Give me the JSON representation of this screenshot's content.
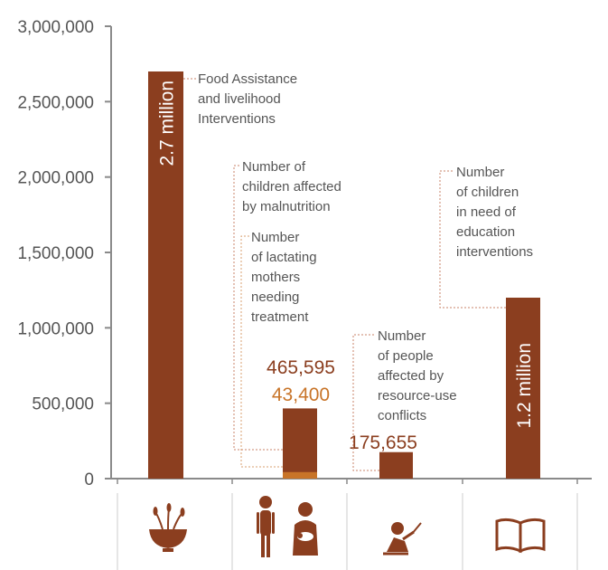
{
  "colors": {
    "bar": "#8b3e1f",
    "secondary": "#c87428",
    "axis": "#8a8a8a",
    "leader": "#c9836a",
    "leader_orange": "#d9a070",
    "icon": "#8b3e1f"
  },
  "chart_data": {
    "type": "bar",
    "ylim": [
      0,
      3000000
    ],
    "yticks": [
      {
        "value": 0,
        "label": "0"
      },
      {
        "value": 500000,
        "label": "500,000"
      },
      {
        "value": 1000000,
        "label": "1,000,000"
      },
      {
        "value": 1500000,
        "label": "1,500,000"
      },
      {
        "value": 2000000,
        "label": "2,000,000"
      },
      {
        "value": 2500000,
        "label": "2,500,000"
      },
      {
        "value": 3000000,
        "label": "3,000,000"
      }
    ],
    "categories": [
      "food",
      "nutrition",
      "conflict",
      "education"
    ],
    "bars": [
      {
        "category": "food",
        "value": 2700000,
        "label": "2.7 million",
        "note": [
          "Food Assistance",
          "and livelihood",
          "Interventions"
        ]
      },
      {
        "category": "nutrition",
        "value": 465595,
        "label": "465,595",
        "note": [
          "Number of",
          "children affected",
          "by malnutrition"
        ]
      },
      {
        "category": "nutrition",
        "value": 43400,
        "label": "43,400",
        "note": [
          "Number",
          "of lactating",
          "mothers",
          "needing",
          "treatment"
        ]
      },
      {
        "category": "conflict",
        "value": 175655,
        "label": "175,655",
        "note": [
          "Number",
          "of people",
          "affected by",
          "resource-use",
          "conflicts"
        ]
      },
      {
        "category": "education",
        "value": 1200000,
        "label": "1.2 million",
        "note": [
          "Number",
          "of children",
          "in need of",
          "education",
          "interventions"
        ]
      }
    ],
    "icons": [
      "food-bowl-icon",
      "mother-child-icon",
      "conflict-person-icon",
      "open-book-icon"
    ],
    "grid": false
  }
}
